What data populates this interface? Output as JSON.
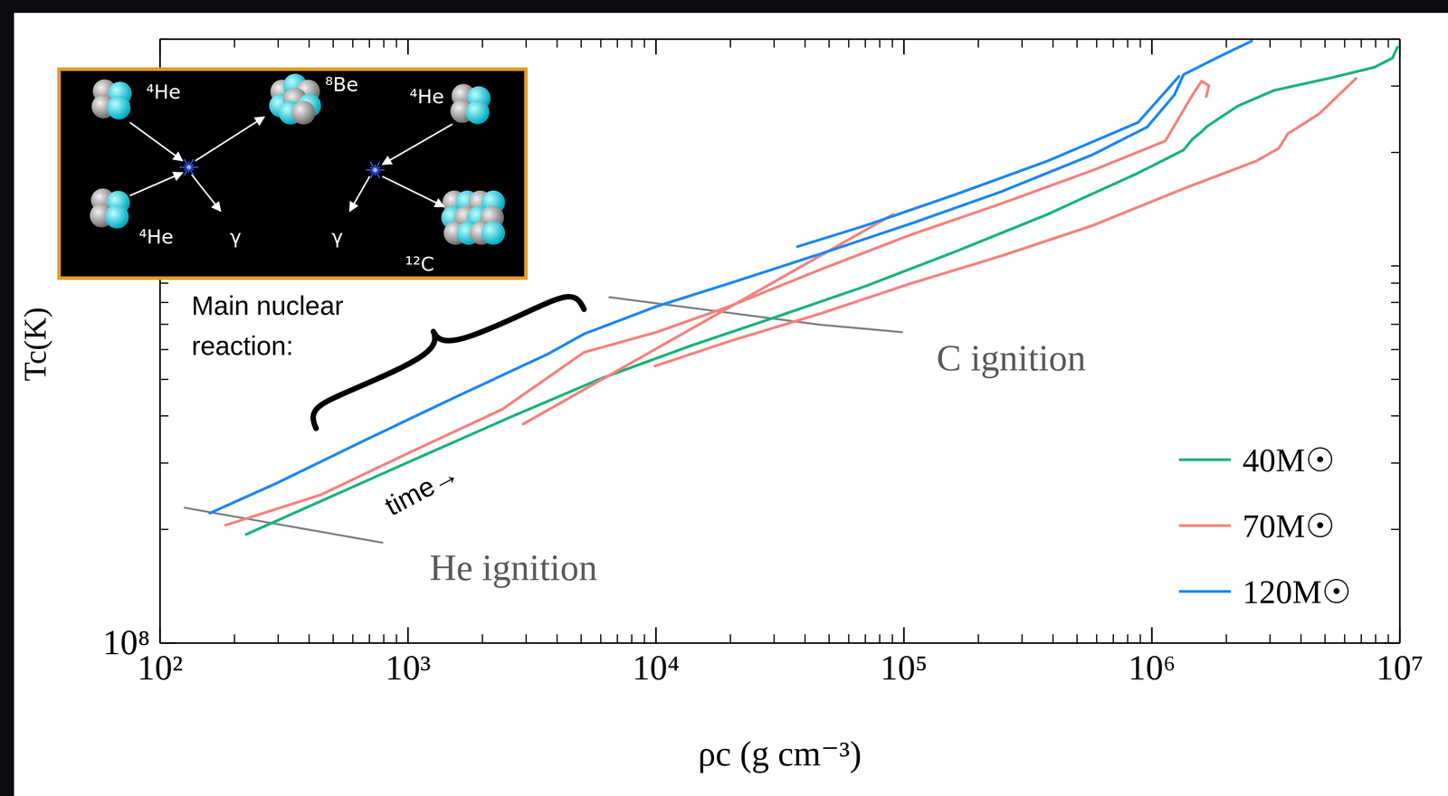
{
  "chart_data": {
    "type": "line",
    "x_label": "ρc (g cm⁻³)",
    "y_label": "Tc(K)",
    "log": true,
    "xlim": [
      100,
      10000000
    ],
    "ylim": [
      100000000,
      4000000000
    ],
    "xticks": [
      {
        "value": 100,
        "label": "10²"
      },
      {
        "value": 1000,
        "label": "10³"
      },
      {
        "value": 10000,
        "label": "10⁴"
      },
      {
        "value": 100000,
        "label": "10⁵"
      },
      {
        "value": 1000000,
        "label": "10⁶"
      },
      {
        "value": 10000000,
        "label": "10⁷"
      }
    ],
    "yticks": [
      {
        "value": 100000000,
        "label": "10⁸"
      }
    ],
    "legend": "lower right",
    "series": [
      {
        "name": "40M☉",
        "color": "#1db37a",
        "x": [
          223,
          445,
          1034,
          2616,
          6080,
          14130,
          30190,
          70190,
          163100,
          379200,
          531300,
          881000,
          1344000,
          1462000,
          1590000,
          1659000,
          1882000,
          2228000,
          3123000,
          5180000,
          7898000,
          9348000,
          9800000
        ],
        "values": [
          194000000.0,
          237500000.0,
          304100000.0,
          398100000.0,
          504000000.0,
          617000000.0,
          730200000.0,
          883700000.0,
          1094000000.0,
          1369000000.0,
          1516000000.0,
          1763000000.0,
          2029000000.0,
          2171000000.0,
          2270000000.0,
          2335000000.0,
          2470000000.0,
          2657000000.0,
          2923000000.0,
          3145000000.0,
          3364000000.0,
          3558000000.0,
          3806000000.0
        ]
      },
      {
        "name": "70M☉",
        "color": "#f4837f",
        "x": [
          184,
          445,
          1034,
          2404,
          5135,
          10085,
          19800,
          46030,
          106980,
          248700,
          578000,
          1135000,
          1462000,
          1590000,
          1701000,
          1659000,
          null,
          2919,
          8518,
          19800,
          46030,
          90370,
          null,
          9915,
          19800,
          46030,
          106980,
          248700,
          578000,
          1344000,
          2638000,
          3257000,
          3544000,
          3856000,
          4761000,
          6671000
        ],
        "values": [
          205200000.0,
          247000000.0,
          321600000.0,
          416500000.0,
          589900000.0,
          667400000.0,
          781100000.0,
          977700000.0,
          1210000000.0,
          1465000000.0,
          1793000000.0,
          2146000000.0,
          2843000000.0,
          3092000000.0,
          3006000000.0,
          2811000000.0,
          null,
          380600000.0,
          567200000.0,
          776700000.0,
          1064000000.0,
          1369000000.0,
          null,
          542300000.0,
          631000000.0,
          746800000.0,
          898800000.0,
          1064000000.0,
          1280000000.0,
          1603000000.0,
          1897000000.0,
          2052000000.0,
          2245000000.0,
          2322000000.0,
          2540000000.0,
          3145000000.0
        ]
      },
      {
        "name": "120M☉",
        "color": "#1e88f0",
        "x": [
          159,
          292,
          678,
          1576,
          3665,
          5135,
          10085,
          19800,
          46030,
          106980,
          248700,
          578000,
          958700,
          1235000,
          1344000,
          1882000,
          2529000,
          null,
          37270,
          70190,
          163100,
          379200,
          881000,
          1288000
        ],
        "values": [
          220800000.0,
          264200000.0,
          345900000.0,
          450500000.0,
          583400000.0,
          660000000.0,
          781100000.0,
          898800000.0,
          1076000000.0,
          1295000000.0,
          1576000000.0,
          1973000000.0,
          2335000000.0,
          2843000000.0,
          3217000000.0,
          3598000000.0,
          3950000000.0,
          null,
          1125000000.0,
          1280000000.0,
          1550000000.0,
          1897000000.0,
          2402000000.0,
          3181000000.0
        ]
      }
    ],
    "reference_lines": [
      {
        "label": "He ignition",
        "color": "#808080",
        "x": [
          126,
          790
        ],
        "values": [
          228300000.0,
          184400000.0
        ]
      },
      {
        "label": "C ignition",
        "color": "#808080",
        "x": [
          6505,
          46030,
          98330
        ],
        "values": [
          826200000.0,
          698100000.0,
          667400000.0
        ]
      }
    ],
    "annotations": {
      "time": "time→",
      "reaction": [
        "Main nuclear",
        "reaction:"
      ]
    },
    "inset": {
      "labels": [
        "⁴He",
        "⁴He",
        "γ",
        "⁸Be",
        "⁴He",
        "γ",
        "¹²C"
      ]
    }
  }
}
